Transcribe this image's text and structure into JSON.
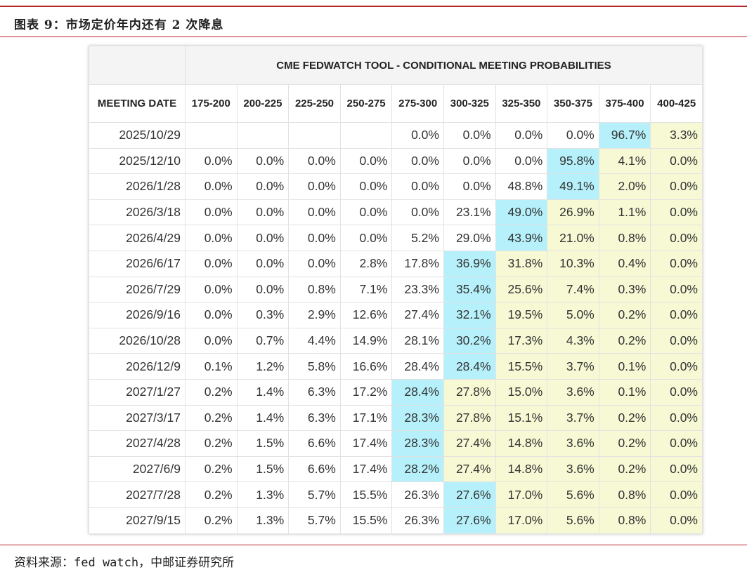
{
  "figure": {
    "title": "图表 9：市场定价年内还有 2 次降息",
    "source": "资料来源：fed watch，中邮证券研究所"
  },
  "colors": {
    "accent_rule": "#b5262b",
    "highlight_max": "#b6f1fb",
    "highlight_above": "#f7f9d5"
  },
  "chart_data": {
    "type": "table",
    "title": "CME FEDWATCH TOOL - CONDITIONAL MEETING PROBABILITIES",
    "row_header_label": "MEETING DATE",
    "columns": [
      "175-200",
      "200-225",
      "225-250",
      "250-275",
      "275-300",
      "300-325",
      "325-350",
      "350-375",
      "375-400",
      "400-425"
    ],
    "rows": [
      {
        "date": "2025/10/29",
        "values": [
          "",
          "",
          "",
          "",
          "0.0%",
          "0.0%",
          "0.0%",
          "0.0%",
          "96.7%",
          "3.3%"
        ],
        "max_col": 8
      },
      {
        "date": "2025/12/10",
        "values": [
          "0.0%",
          "0.0%",
          "0.0%",
          "0.0%",
          "0.0%",
          "0.0%",
          "0.0%",
          "95.8%",
          "4.1%",
          "0.0%"
        ],
        "max_col": 7
      },
      {
        "date": "2026/1/28",
        "values": [
          "0.0%",
          "0.0%",
          "0.0%",
          "0.0%",
          "0.0%",
          "0.0%",
          "48.8%",
          "49.1%",
          "2.0%",
          "0.0%"
        ],
        "max_col": 7
      },
      {
        "date": "2026/3/18",
        "values": [
          "0.0%",
          "0.0%",
          "0.0%",
          "0.0%",
          "0.0%",
          "23.1%",
          "49.0%",
          "26.9%",
          "1.1%",
          "0.0%"
        ],
        "max_col": 6
      },
      {
        "date": "2026/4/29",
        "values": [
          "0.0%",
          "0.0%",
          "0.0%",
          "0.0%",
          "5.2%",
          "29.0%",
          "43.9%",
          "21.0%",
          "0.8%",
          "0.0%"
        ],
        "max_col": 6
      },
      {
        "date": "2026/6/17",
        "values": [
          "0.0%",
          "0.0%",
          "0.0%",
          "2.8%",
          "17.8%",
          "36.9%",
          "31.8%",
          "10.3%",
          "0.4%",
          "0.0%"
        ],
        "max_col": 5
      },
      {
        "date": "2026/7/29",
        "values": [
          "0.0%",
          "0.0%",
          "0.8%",
          "7.1%",
          "23.3%",
          "35.4%",
          "25.6%",
          "7.4%",
          "0.3%",
          "0.0%"
        ],
        "max_col": 5
      },
      {
        "date": "2026/9/16",
        "values": [
          "0.0%",
          "0.3%",
          "2.9%",
          "12.6%",
          "27.4%",
          "32.1%",
          "19.5%",
          "5.0%",
          "0.2%",
          "0.0%"
        ],
        "max_col": 5
      },
      {
        "date": "2026/10/28",
        "values": [
          "0.0%",
          "0.7%",
          "4.4%",
          "14.9%",
          "28.1%",
          "30.2%",
          "17.3%",
          "4.3%",
          "0.2%",
          "0.0%"
        ],
        "max_col": 5
      },
      {
        "date": "2026/12/9",
        "values": [
          "0.1%",
          "1.2%",
          "5.8%",
          "16.6%",
          "28.4%",
          "28.4%",
          "15.5%",
          "3.7%",
          "0.1%",
          "0.0%"
        ],
        "max_col": 5
      },
      {
        "date": "2027/1/27",
        "values": [
          "0.2%",
          "1.4%",
          "6.3%",
          "17.2%",
          "28.4%",
          "27.8%",
          "15.0%",
          "3.6%",
          "0.1%",
          "0.0%"
        ],
        "max_col": 4
      },
      {
        "date": "2027/3/17",
        "values": [
          "0.2%",
          "1.4%",
          "6.3%",
          "17.1%",
          "28.3%",
          "27.8%",
          "15.1%",
          "3.7%",
          "0.2%",
          "0.0%"
        ],
        "max_col": 4
      },
      {
        "date": "2027/4/28",
        "values": [
          "0.2%",
          "1.5%",
          "6.6%",
          "17.4%",
          "28.3%",
          "27.4%",
          "14.8%",
          "3.6%",
          "0.2%",
          "0.0%"
        ],
        "max_col": 4
      },
      {
        "date": "2027/6/9",
        "values": [
          "0.2%",
          "1.5%",
          "6.6%",
          "17.4%",
          "28.2%",
          "27.4%",
          "14.8%",
          "3.6%",
          "0.2%",
          "0.0%"
        ],
        "max_col": 4
      },
      {
        "date": "2027/7/28",
        "values": [
          "0.2%",
          "1.3%",
          "5.7%",
          "15.5%",
          "26.3%",
          "27.6%",
          "17.0%",
          "5.6%",
          "0.8%",
          "0.0%"
        ],
        "max_col": 5
      },
      {
        "date": "2027/9/15",
        "values": [
          "0.2%",
          "1.3%",
          "5.7%",
          "15.5%",
          "26.3%",
          "27.6%",
          "17.0%",
          "5.6%",
          "0.8%",
          "0.0%"
        ],
        "max_col": 5
      }
    ]
  }
}
